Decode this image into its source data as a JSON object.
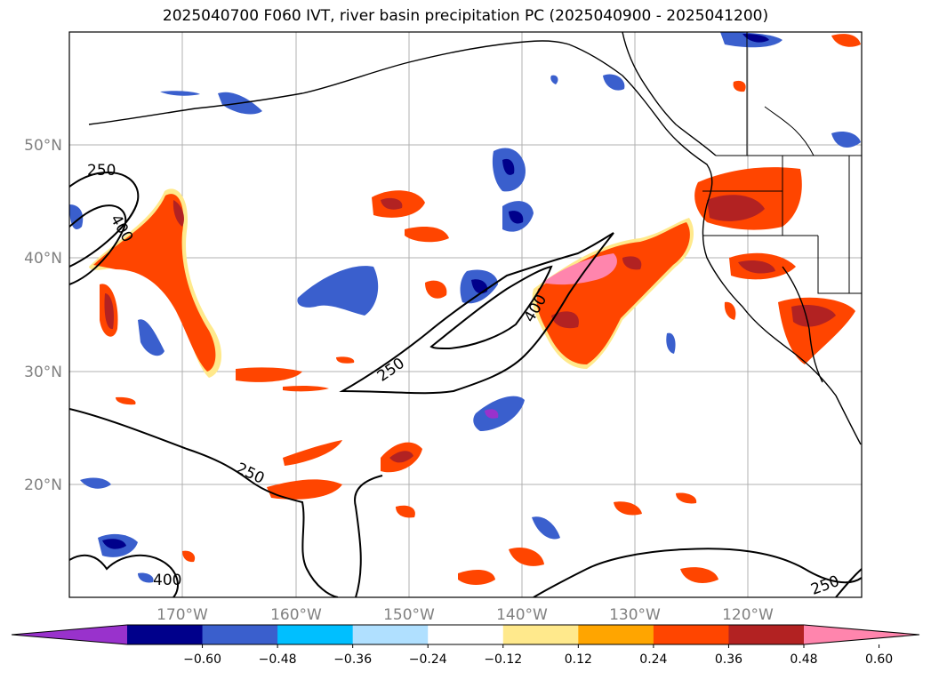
{
  "title": "2025040700 F060 IVT, river basin precipitation PC (2025040900 - 2025041200)",
  "map": {
    "lon_ticks": [
      "170°W",
      "160°W",
      "150°W",
      "140°W",
      "130°W",
      "120°W"
    ],
    "lat_ticks": [
      "50°N",
      "40°N",
      "30°N",
      "20°N"
    ],
    "contour_labels": [
      "250",
      "400",
      "250",
      "400",
      "250",
      "400",
      "250"
    ]
  },
  "colorbar": {
    "labels": [
      "−0.60",
      "−0.48",
      "−0.36",
      "−0.24",
      "−0.12",
      "0.12",
      "0.24",
      "0.36",
      "0.48",
      "0.60"
    ],
    "colors": [
      "#9932cc",
      "#00008b",
      "#3a5fcd",
      "#00bfff",
      "#b0e0ff",
      "#ffffff",
      "#ffe98c",
      "#ffa500",
      "#ff4500",
      "#b22222",
      "#ff85ad"
    ]
  }
}
